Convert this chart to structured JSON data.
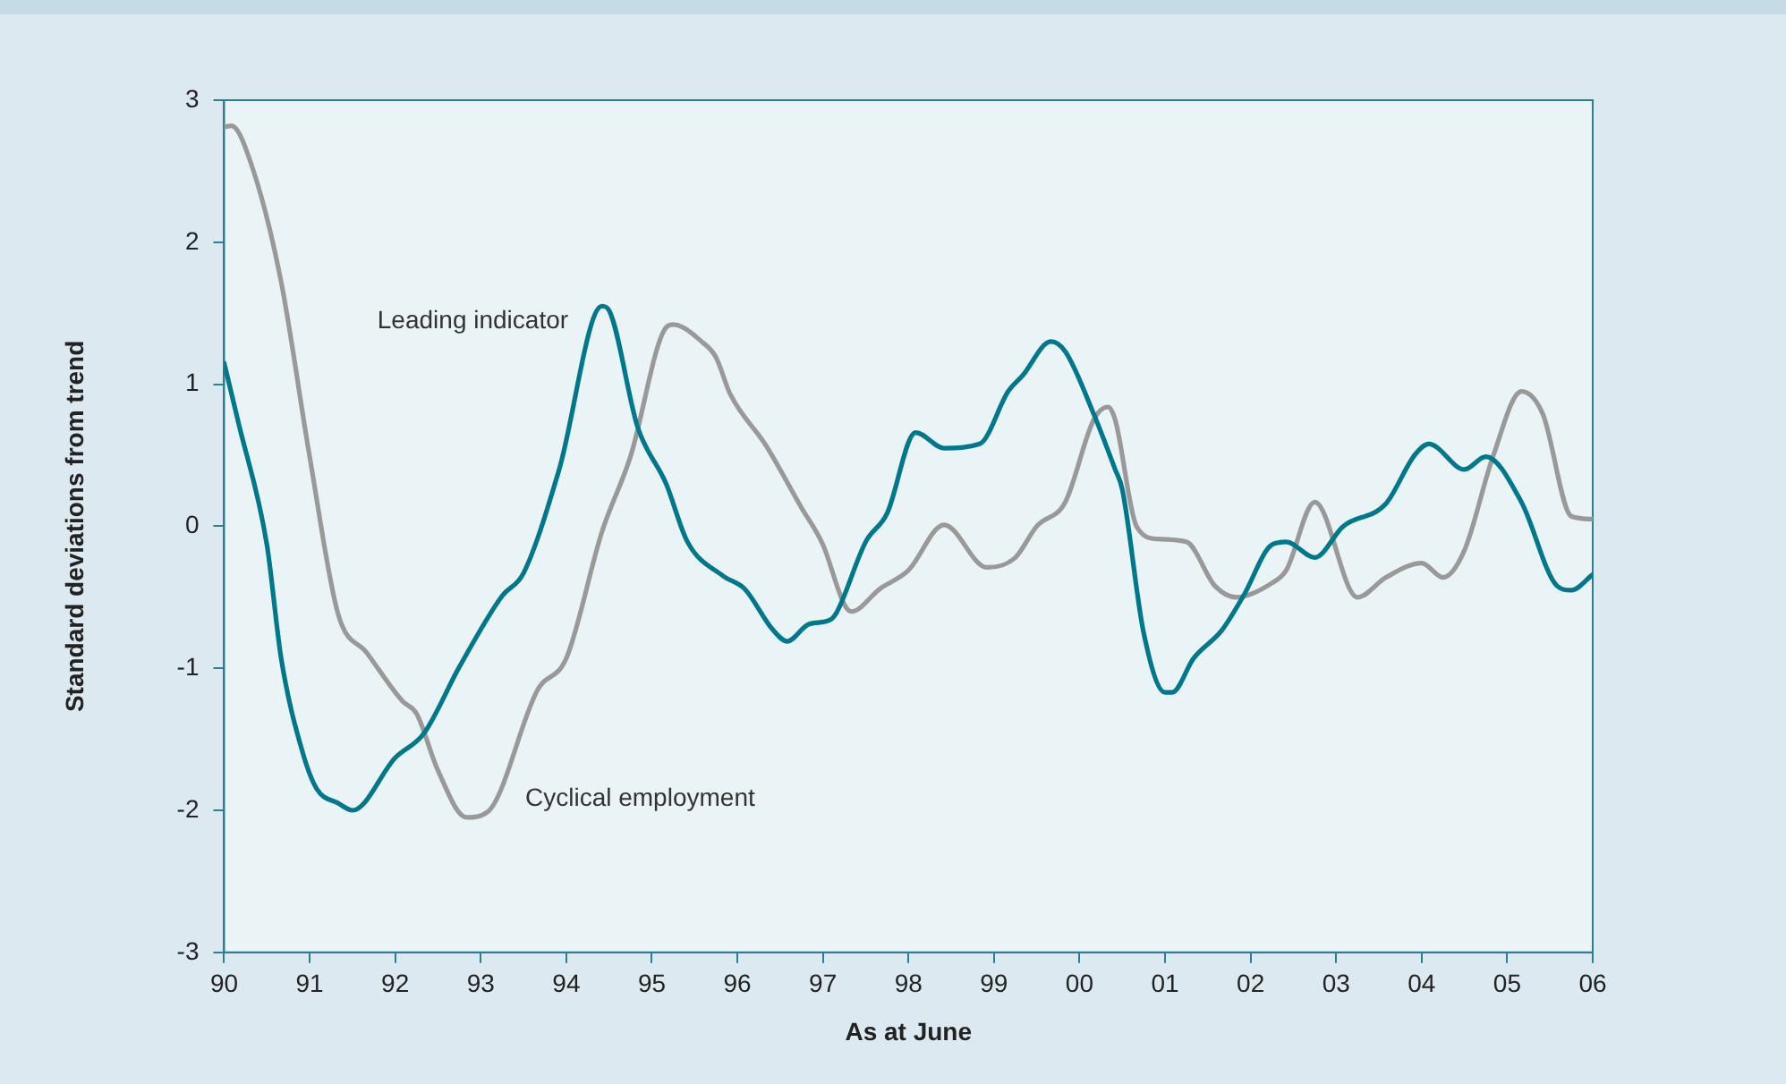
{
  "chart_data": {
    "type": "line",
    "xlabel": "As at June",
    "ylabel": "Standard deviations from trend",
    "xlim": [
      "1990-06",
      "2006-06"
    ],
    "xticks": [
      {
        "value": "1990-06",
        "label": "90"
      },
      {
        "value": "1991-06",
        "label": "91"
      },
      {
        "value": "1992-06",
        "label": "92"
      },
      {
        "value": "1993-06",
        "label": "93"
      },
      {
        "value": "1994-06",
        "label": "94"
      },
      {
        "value": "1995-06",
        "label": "95"
      },
      {
        "value": "1996-06",
        "label": "96"
      },
      {
        "value": "1997-06",
        "label": "97"
      },
      {
        "value": "1998-06",
        "label": "98"
      },
      {
        "value": "1999-06",
        "label": "99"
      },
      {
        "value": "2000-06",
        "label": "00"
      },
      {
        "value": "2001-06",
        "label": "01"
      },
      {
        "value": "2002-06",
        "label": "02"
      },
      {
        "value": "2003-06",
        "label": "03"
      },
      {
        "value": "2004-06",
        "label": "04"
      },
      {
        "value": "2005-06",
        "label": "05"
      },
      {
        "value": "2006-06",
        "label": "06"
      }
    ],
    "ylim": [
      -3,
      3
    ],
    "yticks": [
      -3,
      -2,
      -1,
      0,
      1,
      2,
      3
    ],
    "grid": false,
    "legend": false,
    "marker": "none",
    "line_style": "solid",
    "series": [
      {
        "name": "Leading indicator",
        "color": "#00788c",
        "x": [
          "1990-06",
          "1990-08",
          "1990-12",
          "1991-02",
          "1991-05",
          "1991-07",
          "1991-10",
          "1991-12",
          "1992-06",
          "1992-10",
          "1993-03",
          "1993-09",
          "1993-12",
          "1994-05",
          "1994-11",
          "1994-12",
          "1995-04",
          "1995-08",
          "1995-11",
          "1996-04",
          "1996-07",
          "1996-11",
          "1997-01",
          "1997-04",
          "1997-07",
          "1997-08",
          "1997-12",
          "1998-03",
          "1998-07",
          "1998-11",
          "1999-04",
          "1999-08",
          "1999-10",
          "2000-02",
          "2000-04",
          "2000-08",
          "2000-11",
          "2000-12",
          "2001-03",
          "2001-06",
          "2001-07",
          "2001-10",
          "2002-02",
          "2002-05",
          "2002-09",
          "2002-11",
          "2003-03",
          "2003-07",
          "2004-01",
          "2004-05",
          "2004-07",
          "2004-12",
          "2005-03",
          "2005-08",
          "2006-01",
          "2006-03",
          "2006-06"
        ],
        "values": [
          1.15,
          0.73,
          -0.13,
          -0.93,
          -1.59,
          -1.85,
          -1.95,
          -2.0,
          -1.63,
          -1.46,
          -0.99,
          -0.49,
          -0.33,
          0.4,
          1.55,
          1.52,
          0.7,
          0.3,
          -0.11,
          -0.35,
          -0.44,
          -0.73,
          -0.81,
          -0.69,
          -0.66,
          -0.6,
          -0.11,
          0.09,
          0.66,
          0.55,
          0.58,
          0.95,
          1.06,
          1.3,
          1.23,
          0.79,
          0.4,
          0.26,
          -0.75,
          -1.17,
          -1.17,
          -0.93,
          -0.73,
          -0.49,
          -0.13,
          -0.11,
          -0.22,
          0.0,
          0.16,
          0.5,
          0.58,
          0.4,
          0.49,
          0.17,
          -0.42,
          -0.45,
          -0.34
        ]
      },
      {
        "name": "Cyclical employment",
        "color": "#999999",
        "x": [
          "1990-06",
          "1990-07",
          "1990-10",
          "1991-02",
          "1991-06",
          "1991-10",
          "1992-02",
          "1992-07",
          "1992-09",
          "1992-12",
          "1993-04",
          "1993-07",
          "1994-02",
          "1994-06",
          "1994-11",
          "1995-03",
          "1995-08",
          "1995-09",
          "1996-01",
          "1996-03",
          "1996-05",
          "1996-10",
          "1997-03",
          "1997-06",
          "1997-09",
          "1997-10",
          "1998-02",
          "1998-06",
          "1998-11",
          "1999-05",
          "1999-09",
          "1999-12",
          "2000-04",
          "2000-08",
          "2000-10",
          "2000-11",
          "2001-02",
          "2001-05",
          "2001-09",
          "2002-01",
          "2002-04",
          "2002-09",
          "2002-11",
          "2003-03",
          "2003-09",
          "2004-01",
          "2004-06",
          "2004-09",
          "2004-12",
          "2005-04",
          "2005-08",
          "2005-11",
          "2006-03",
          "2006-06"
        ],
        "values": [
          2.81,
          2.82,
          2.52,
          1.72,
          0.49,
          -0.62,
          -0.89,
          -1.23,
          -1.32,
          -1.72,
          -2.05,
          -2.01,
          -1.15,
          -0.93,
          -0.04,
          0.49,
          1.4,
          1.42,
          1.3,
          1.19,
          0.93,
          0.57,
          0.13,
          -0.13,
          -0.55,
          -0.6,
          -0.44,
          -0.31,
          0.01,
          -0.29,
          -0.22,
          0.0,
          0.17,
          0.75,
          0.84,
          0.75,
          0.0,
          -0.09,
          -0.11,
          -0.42,
          -0.5,
          -0.4,
          -0.31,
          0.17,
          -0.5,
          -0.36,
          -0.26,
          -0.36,
          -0.17,
          0.49,
          0.95,
          0.79,
          0.07,
          0.05
        ]
      }
    ]
  }
}
